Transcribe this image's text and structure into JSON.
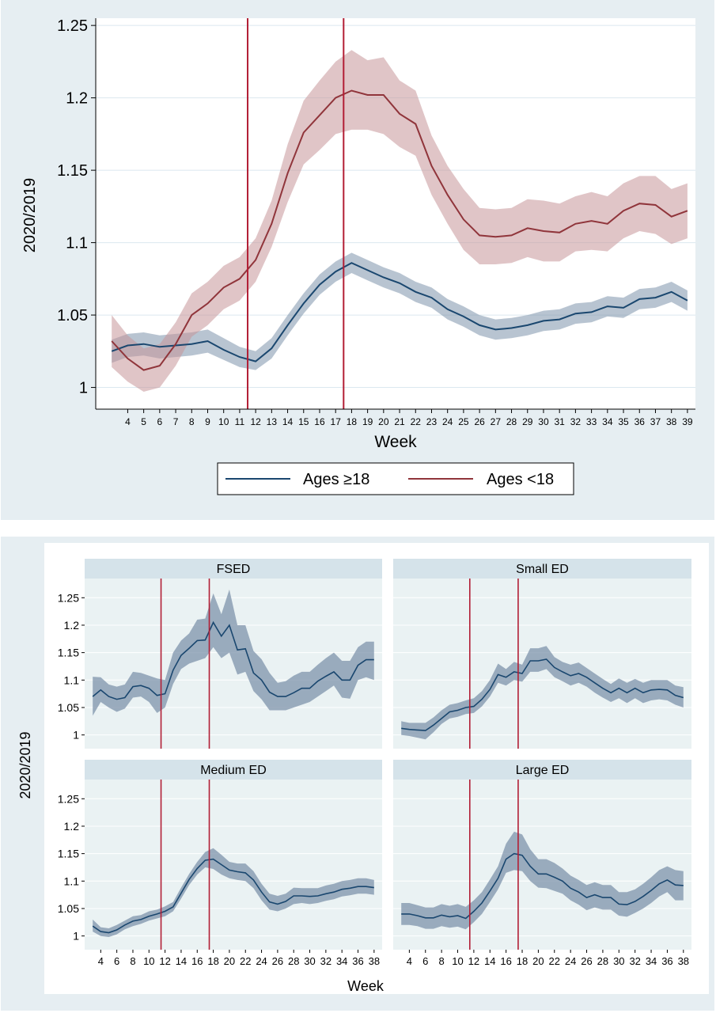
{
  "chart_data": [
    {
      "type": "line",
      "xlabel": "Week",
      "ylabel": "2020/2019",
      "x_range": [
        2,
        39
      ],
      "ylim": [
        0.985,
        1.255
      ],
      "y_ticks": [
        1,
        1.05,
        1.1,
        1.15,
        1.2,
        1.25
      ],
      "y_tick_labels": [
        "1",
        "1.05",
        "1.1",
        "1.15",
        "1.2",
        "1.25"
      ],
      "x_ticks": [
        4,
        5,
        6,
        7,
        8,
        9,
        10,
        11,
        12,
        13,
        14,
        15,
        16,
        17,
        18,
        19,
        20,
        21,
        22,
        23,
        24,
        25,
        26,
        27,
        28,
        29,
        30,
        31,
        32,
        33,
        34,
        35,
        36,
        37,
        38,
        39
      ],
      "vlines": [
        11.5,
        17.5
      ],
      "legend_position": "bottom",
      "colors": {
        "adult": "#1a476f",
        "child": "#90353b",
        "adult_band": "#7d93ab",
        "child_band": "#c79599",
        "vline": "#b21e35",
        "panel_bg": "#eaf2f3",
        "grid": "#dbe8ef"
      },
      "series": [
        {
          "name": "Ages ≥18",
          "x": [
            3,
            4,
            5,
            6,
            7,
            8,
            9,
            10,
            11,
            12,
            13,
            14,
            15,
            16,
            17,
            18,
            19,
            20,
            21,
            22,
            23,
            24,
            25,
            26,
            27,
            28,
            29,
            30,
            31,
            32,
            33,
            34,
            35,
            36,
            37,
            38,
            39
          ],
          "values": [
            1.025,
            1.029,
            1.03,
            1.028,
            1.029,
            1.03,
            1.032,
            1.026,
            1.021,
            1.018,
            1.027,
            1.043,
            1.058,
            1.071,
            1.08,
            1.086,
            1.081,
            1.076,
            1.072,
            1.066,
            1.062,
            1.054,
            1.049,
            1.043,
            1.04,
            1.041,
            1.043,
            1.046,
            1.047,
            1.051,
            1.052,
            1.056,
            1.055,
            1.061,
            1.062,
            1.066,
            1.06
          ],
          "lower": [
            1.017,
            1.021,
            1.022,
            1.02,
            1.021,
            1.022,
            1.024,
            1.019,
            1.014,
            1.012,
            1.02,
            1.036,
            1.051,
            1.064,
            1.073,
            1.079,
            1.074,
            1.069,
            1.065,
            1.059,
            1.055,
            1.047,
            1.042,
            1.036,
            1.033,
            1.034,
            1.036,
            1.039,
            1.04,
            1.044,
            1.045,
            1.049,
            1.048,
            1.054,
            1.055,
            1.059,
            1.053
          ],
          "upper": [
            1.033,
            1.037,
            1.038,
            1.036,
            1.037,
            1.038,
            1.04,
            1.034,
            1.028,
            1.025,
            1.034,
            1.05,
            1.065,
            1.078,
            1.087,
            1.093,
            1.088,
            1.083,
            1.079,
            1.073,
            1.069,
            1.061,
            1.056,
            1.05,
            1.047,
            1.048,
            1.05,
            1.053,
            1.054,
            1.058,
            1.059,
            1.063,
            1.062,
            1.068,
            1.069,
            1.073,
            1.067
          ]
        },
        {
          "name": "Ages <18",
          "x": [
            3,
            4,
            5,
            6,
            7,
            8,
            9,
            10,
            11,
            12,
            13,
            14,
            15,
            16,
            17,
            18,
            19,
            20,
            21,
            22,
            23,
            24,
            25,
            26,
            27,
            28,
            29,
            30,
            31,
            32,
            33,
            34,
            35,
            36,
            37,
            38,
            39
          ],
          "values": [
            1.032,
            1.02,
            1.012,
            1.015,
            1.03,
            1.05,
            1.058,
            1.069,
            1.075,
            1.088,
            1.113,
            1.148,
            1.176,
            1.188,
            1.2,
            1.205,
            1.202,
            1.202,
            1.189,
            1.182,
            1.153,
            1.133,
            1.116,
            1.105,
            1.104,
            1.105,
            1.11,
            1.108,
            1.107,
            1.113,
            1.115,
            1.113,
            1.122,
            1.127,
            1.126,
            1.118,
            1.122
          ],
          "lower": [
            1.014,
            1.004,
            0.997,
            1.0,
            1.015,
            1.035,
            1.043,
            1.054,
            1.06,
            1.073,
            1.097,
            1.128,
            1.154,
            1.164,
            1.175,
            1.178,
            1.178,
            1.175,
            1.166,
            1.16,
            1.133,
            1.113,
            1.095,
            1.085,
            1.085,
            1.086,
            1.09,
            1.087,
            1.087,
            1.094,
            1.095,
            1.094,
            1.103,
            1.108,
            1.106,
            1.099,
            1.103
          ],
          "upper": [
            1.05,
            1.036,
            1.027,
            1.03,
            1.045,
            1.065,
            1.073,
            1.084,
            1.09,
            1.103,
            1.129,
            1.168,
            1.198,
            1.212,
            1.225,
            1.233,
            1.226,
            1.228,
            1.212,
            1.205,
            1.174,
            1.153,
            1.137,
            1.124,
            1.123,
            1.124,
            1.13,
            1.129,
            1.127,
            1.132,
            1.135,
            1.132,
            1.141,
            1.146,
            1.146,
            1.137,
            1.141
          ]
        }
      ]
    },
    {
      "type": "line",
      "xlabel": "Week",
      "ylabel": "2020/2019",
      "x_range": [
        2,
        39
      ],
      "ylim": [
        0.975,
        1.285
      ],
      "y_ticks": [
        1,
        1.05,
        1.1,
        1.15,
        1.2,
        1.25
      ],
      "y_tick_labels": [
        "1",
        "1.05",
        "1.1",
        "1.15",
        "1.2",
        "1.25"
      ],
      "x_ticks": [
        4,
        6,
        8,
        10,
        12,
        14,
        16,
        18,
        20,
        22,
        24,
        26,
        28,
        30,
        32,
        34,
        36,
        38
      ],
      "vlines": [
        11.5,
        17.5
      ],
      "panels": [
        {
          "title": "FSED",
          "x": [
            3,
            4,
            5,
            6,
            7,
            8,
            9,
            10,
            11,
            12,
            13,
            14,
            15,
            16,
            17,
            18,
            19,
            20,
            21,
            22,
            23,
            24,
            25,
            26,
            27,
            28,
            29,
            30,
            31,
            32,
            33,
            34,
            35,
            36,
            37,
            38
          ],
          "values": [
            1.07,
            1.082,
            1.07,
            1.065,
            1.068,
            1.088,
            1.09,
            1.085,
            1.072,
            1.075,
            1.118,
            1.145,
            1.158,
            1.172,
            1.173,
            1.205,
            1.18,
            1.2,
            1.155,
            1.157,
            1.113,
            1.1,
            1.078,
            1.07,
            1.07,
            1.077,
            1.085,
            1.085,
            1.098,
            1.107,
            1.115,
            1.1,
            1.1,
            1.127,
            1.137,
            1.137
          ],
          "lower": [
            1.035,
            1.06,
            1.05,
            1.042,
            1.048,
            1.068,
            1.07,
            1.06,
            1.04,
            1.05,
            1.093,
            1.12,
            1.13,
            1.135,
            1.14,
            1.16,
            1.14,
            1.15,
            1.11,
            1.115,
            1.08,
            1.065,
            1.045,
            1.045,
            1.045,
            1.05,
            1.055,
            1.06,
            1.07,
            1.08,
            1.09,
            1.068,
            1.066,
            1.1,
            1.105,
            1.1
          ],
          "upper": [
            1.106,
            1.105,
            1.092,
            1.088,
            1.092,
            1.115,
            1.113,
            1.108,
            1.103,
            1.1,
            1.15,
            1.172,
            1.185,
            1.21,
            1.212,
            1.258,
            1.22,
            1.265,
            1.2,
            1.2,
            1.153,
            1.138,
            1.113,
            1.095,
            1.098,
            1.108,
            1.115,
            1.115,
            1.128,
            1.14,
            1.15,
            1.135,
            1.135,
            1.16,
            1.17,
            1.17
          ]
        },
        {
          "title": "Small ED",
          "x": [
            3,
            4,
            5,
            6,
            7,
            8,
            9,
            10,
            11,
            12,
            13,
            14,
            15,
            16,
            17,
            18,
            19,
            20,
            21,
            22,
            23,
            24,
            25,
            26,
            27,
            28,
            29,
            30,
            31,
            32,
            33,
            34,
            35,
            36,
            37,
            38
          ],
          "values": [
            1.012,
            1.01,
            1.009,
            1.008,
            1.018,
            1.03,
            1.042,
            1.045,
            1.05,
            1.052,
            1.065,
            1.083,
            1.11,
            1.105,
            1.115,
            1.112,
            1.135,
            1.135,
            1.138,
            1.123,
            1.115,
            1.108,
            1.112,
            1.105,
            1.095,
            1.085,
            1.077,
            1.085,
            1.077,
            1.085,
            1.077,
            1.082,
            1.083,
            1.082,
            1.072,
            1.068
          ],
          "lower": [
            1.0,
            0.998,
            0.995,
            0.992,
            1.005,
            1.02,
            1.03,
            1.033,
            1.038,
            1.04,
            1.052,
            1.07,
            1.095,
            1.09,
            1.1,
            1.097,
            1.115,
            1.115,
            1.12,
            1.105,
            1.098,
            1.09,
            1.095,
            1.088,
            1.077,
            1.068,
            1.06,
            1.067,
            1.058,
            1.067,
            1.058,
            1.063,
            1.065,
            1.063,
            1.055,
            1.05
          ],
          "upper": [
            1.025,
            1.022,
            1.022,
            1.022,
            1.032,
            1.045,
            1.055,
            1.058,
            1.063,
            1.067,
            1.08,
            1.1,
            1.13,
            1.12,
            1.133,
            1.128,
            1.158,
            1.158,
            1.162,
            1.142,
            1.133,
            1.128,
            1.132,
            1.122,
            1.112,
            1.102,
            1.093,
            1.103,
            1.095,
            1.102,
            1.095,
            1.1,
            1.1,
            1.1,
            1.09,
            1.087
          ]
        },
        {
          "title": "Medium ED",
          "x": [
            3,
            4,
            5,
            6,
            7,
            8,
            9,
            10,
            11,
            12,
            13,
            14,
            15,
            16,
            17,
            18,
            19,
            20,
            21,
            22,
            23,
            24,
            25,
            26,
            27,
            28,
            29,
            30,
            31,
            32,
            33,
            34,
            35,
            36,
            37,
            38
          ],
          "values": [
            1.018,
            1.008,
            1.006,
            1.011,
            1.02,
            1.027,
            1.03,
            1.036,
            1.04,
            1.045,
            1.053,
            1.078,
            1.103,
            1.123,
            1.138,
            1.14,
            1.13,
            1.12,
            1.117,
            1.115,
            1.102,
            1.08,
            1.062,
            1.058,
            1.063,
            1.073,
            1.073,
            1.072,
            1.073,
            1.077,
            1.08,
            1.085,
            1.087,
            1.09,
            1.09,
            1.088
          ],
          "lower": [
            1.008,
            1.0,
            0.998,
            1.003,
            1.012,
            1.018,
            1.022,
            1.028,
            1.032,
            1.036,
            1.045,
            1.068,
            1.093,
            1.112,
            1.125,
            1.122,
            1.112,
            1.105,
            1.102,
            1.1,
            1.087,
            1.065,
            1.048,
            1.045,
            1.05,
            1.058,
            1.06,
            1.058,
            1.06,
            1.064,
            1.067,
            1.072,
            1.074,
            1.077,
            1.077,
            1.075
          ],
          "upper": [
            1.03,
            1.016,
            1.014,
            1.02,
            1.028,
            1.036,
            1.038,
            1.045,
            1.048,
            1.054,
            1.062,
            1.088,
            1.113,
            1.135,
            1.153,
            1.16,
            1.148,
            1.135,
            1.132,
            1.132,
            1.118,
            1.095,
            1.077,
            1.073,
            1.077,
            1.088,
            1.087,
            1.087,
            1.087,
            1.092,
            1.095,
            1.1,
            1.102,
            1.105,
            1.105,
            1.102
          ]
        },
        {
          "title": "Large ED",
          "x": [
            3,
            4,
            5,
            6,
            7,
            8,
            9,
            10,
            11,
            12,
            13,
            14,
            15,
            16,
            17,
            18,
            19,
            20,
            21,
            22,
            23,
            24,
            25,
            26,
            27,
            28,
            29,
            30,
            31,
            32,
            33,
            34,
            35,
            36,
            37,
            38
          ],
          "values": [
            1.04,
            1.04,
            1.037,
            1.033,
            1.033,
            1.038,
            1.035,
            1.037,
            1.032,
            1.045,
            1.06,
            1.082,
            1.105,
            1.14,
            1.15,
            1.147,
            1.127,
            1.113,
            1.113,
            1.107,
            1.1,
            1.087,
            1.08,
            1.07,
            1.075,
            1.07,
            1.07,
            1.058,
            1.057,
            1.063,
            1.072,
            1.083,
            1.095,
            1.102,
            1.093,
            1.092
          ],
          "lower": [
            1.02,
            1.02,
            1.018,
            1.013,
            1.013,
            1.018,
            1.015,
            1.017,
            1.012,
            1.025,
            1.04,
            1.062,
            1.085,
            1.115,
            1.12,
            1.118,
            1.1,
            1.088,
            1.087,
            1.082,
            1.077,
            1.065,
            1.057,
            1.047,
            1.052,
            1.048,
            1.048,
            1.037,
            1.035,
            1.042,
            1.05,
            1.06,
            1.072,
            1.08,
            1.065,
            1.065
          ],
          "upper": [
            1.06,
            1.06,
            1.056,
            1.052,
            1.052,
            1.058,
            1.055,
            1.058,
            1.053,
            1.065,
            1.08,
            1.103,
            1.127,
            1.168,
            1.19,
            1.185,
            1.158,
            1.14,
            1.14,
            1.133,
            1.123,
            1.11,
            1.102,
            1.093,
            1.098,
            1.093,
            1.093,
            1.08,
            1.08,
            1.085,
            1.095,
            1.107,
            1.12,
            1.127,
            1.12,
            1.118
          ]
        }
      ]
    }
  ]
}
